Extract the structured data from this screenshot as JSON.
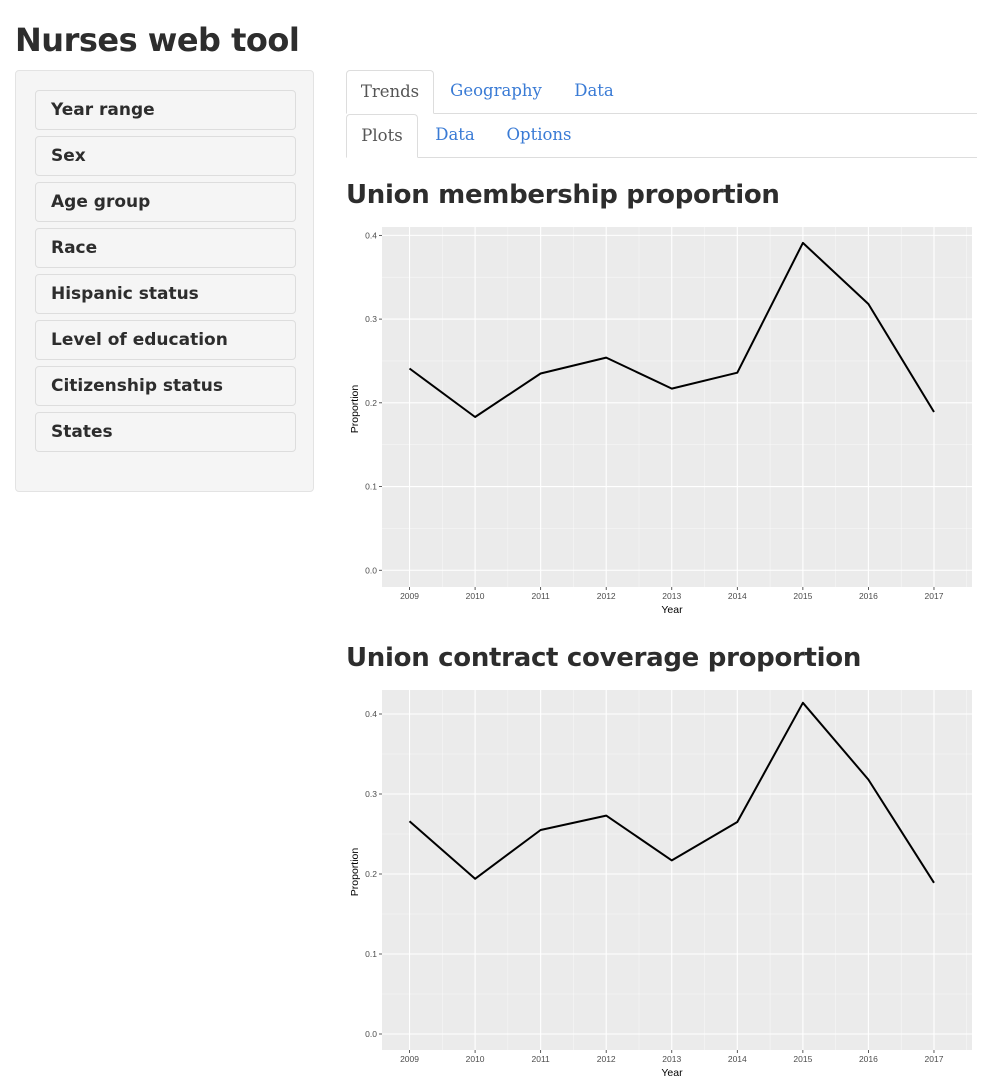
{
  "app": {
    "title": "Nurses web tool"
  },
  "sidebar": {
    "items": [
      {
        "label": "Year range"
      },
      {
        "label": "Sex"
      },
      {
        "label": "Age group"
      },
      {
        "label": "Race"
      },
      {
        "label": "Hispanic status"
      },
      {
        "label": "Level of education"
      },
      {
        "label": "Citizenship status"
      },
      {
        "label": "States"
      }
    ]
  },
  "main_tabs": [
    {
      "label": "Trends",
      "active": true
    },
    {
      "label": "Geography",
      "active": false
    },
    {
      "label": "Data",
      "active": false
    }
  ],
  "sub_tabs": [
    {
      "label": "Plots",
      "active": true
    },
    {
      "label": "Data",
      "active": false
    },
    {
      "label": "Options",
      "active": false
    }
  ],
  "colors": {
    "link": "#3a7bd5",
    "panel_bg": "#ebebeb",
    "grid": "#ffffff",
    "line": "#000000"
  },
  "charts": {
    "union_membership": {
      "heading": "Union membership proportion"
    },
    "contract_coverage": {
      "heading": "Union contract coverage proportion"
    }
  },
  "chart_data": [
    {
      "type": "line",
      "title": "Union membership proportion",
      "xlabel": "Year",
      "ylabel": "Proportion",
      "x": [
        "2009",
        "2010",
        "2011",
        "2012",
        "2013",
        "2014",
        "2015",
        "2016",
        "2017"
      ],
      "values": [
        0.241,
        0.183,
        0.235,
        0.254,
        0.217,
        0.236,
        0.391,
        0.318,
        0.189
      ],
      "ylim": [
        -0.02,
        0.41
      ],
      "yticks": [
        "0.0",
        "0.1",
        "0.2",
        "0.3",
        "0.4"
      ],
      "grid": true,
      "legend": "none"
    },
    {
      "type": "line",
      "title": "Union contract coverage proportion",
      "xlabel": "Year",
      "ylabel": "Proportion",
      "x": [
        "2009",
        "2010",
        "2011",
        "2012",
        "2013",
        "2014",
        "2015",
        "2016",
        "2017"
      ],
      "values": [
        0.266,
        0.194,
        0.255,
        0.273,
        0.217,
        0.265,
        0.414,
        0.318,
        0.189
      ],
      "ylim": [
        -0.02,
        0.43
      ],
      "yticks": [
        "0.0",
        "0.1",
        "0.2",
        "0.3",
        "0.4"
      ],
      "grid": true,
      "legend": "none"
    }
  ]
}
